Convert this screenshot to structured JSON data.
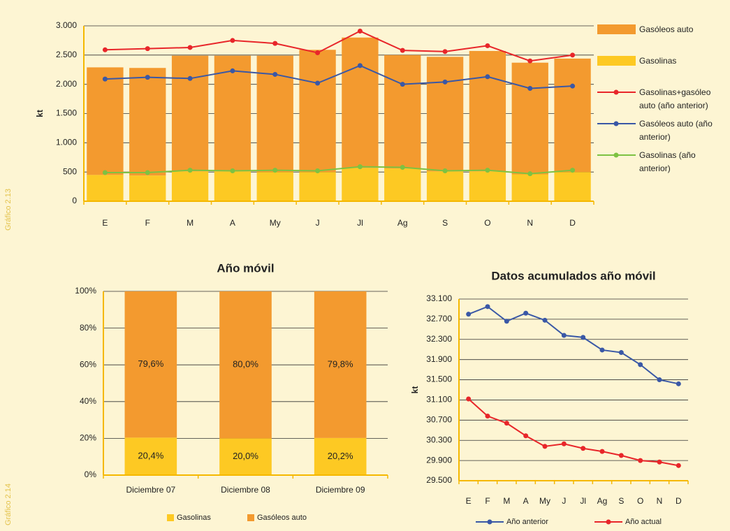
{
  "figure_labels": [
    "Gráfico 2.13",
    "Gráfico 2.14"
  ],
  "chart_data": [
    {
      "type": "bar",
      "ylabel": "kt",
      "categories": [
        "E",
        "F",
        "M",
        "A",
        "My",
        "J",
        "Jl",
        "Ag",
        "S",
        "O",
        "N",
        "D"
      ],
      "series": [
        {
          "name": "Gasóleos auto",
          "color": "#f39a2f",
          "values": [
            1840,
            1840,
            1980,
            1980,
            1990,
            2090,
            2230,
            1940,
            1960,
            2060,
            1910,
            1940
          ]
        },
        {
          "name": "Gasolinas",
          "color": "#fdc923",
          "values": [
            450,
            440,
            510,
            510,
            500,
            500,
            570,
            560,
            510,
            510,
            460,
            500
          ]
        },
        {
          "name": "Gasolinas+gasóleo auto (año anterior)",
          "type": "line",
          "color": "#e8262a",
          "values": [
            2590,
            2610,
            2630,
            2750,
            2700,
            2540,
            2910,
            2580,
            2560,
            2660,
            2400,
            2500
          ]
        },
        {
          "name": "Gasóleos auto (año anterior)",
          "type": "line",
          "color": "#3a58a6",
          "values": [
            2090,
            2120,
            2100,
            2230,
            2170,
            2020,
            2320,
            2000,
            2040,
            2130,
            1930,
            1970
          ]
        },
        {
          "name": "Gasolinas (año anterior)",
          "type": "line",
          "color": "#7dc242",
          "values": [
            490,
            490,
            530,
            520,
            530,
            520,
            590,
            580,
            520,
            530,
            470,
            530
          ]
        }
      ],
      "ylim": [
        0,
        3000
      ],
      "yticks": [
        0,
        500,
        {
          "value": 1000,
          "label": "1.000"
        },
        {
          "value": 1500,
          "label": "1.500"
        },
        {
          "value": 2000,
          "label": "2.000"
        },
        {
          "value": 2500,
          "label": "2.500"
        },
        {
          "value": 3000,
          "label": "3.000"
        }
      ],
      "grid": true,
      "legend": "right"
    },
    {
      "type": "bar",
      "title": "Año móvil",
      "categories": [
        "Diciembre 07",
        "Diciembre 08",
        "Diciembre 09"
      ],
      "series": [
        {
          "name": "Gasolinas",
          "color": "#fdc923",
          "values": [
            20.4,
            20.0,
            20.2
          ],
          "value_labels": [
            "20,4%",
            "20,0%",
            "20,2%"
          ]
        },
        {
          "name": "Gasóleos auto",
          "color": "#f39a2f",
          "values": [
            79.6,
            80.0,
            79.8
          ],
          "value_labels": [
            "79,6%",
            "80,0%",
            "79,8%"
          ]
        }
      ],
      "ylim": [
        0,
        100
      ],
      "yticks": [
        {
          "value": 0,
          "label": "0%"
        },
        {
          "value": 20,
          "label": "20%"
        },
        {
          "value": 40,
          "label": "40%"
        },
        {
          "value": 60,
          "label": "60%"
        },
        {
          "value": 80,
          "label": "80%"
        },
        {
          "value": 100,
          "label": "100%"
        }
      ],
      "grid": true,
      "legend": "bottom"
    },
    {
      "type": "line",
      "title": "Datos acumulados año móvil",
      "ylabel": "kt",
      "categories": [
        "E",
        "F",
        "M",
        "A",
        "My",
        "J",
        "Jl",
        "Ag",
        "S",
        "O",
        "N",
        "D"
      ],
      "series": [
        {
          "name": "Año anterior",
          "color": "#3a58a6",
          "values": [
            32800,
            32950,
            32660,
            32820,
            32680,
            32380,
            32340,
            32090,
            32040,
            31800,
            31500,
            31420
          ]
        },
        {
          "name": "Año actual",
          "color": "#e8262a",
          "values": [
            31120,
            30780,
            30640,
            30390,
            30180,
            30230,
            30140,
            30080,
            30000,
            29900,
            29870,
            29800
          ]
        }
      ],
      "ylim": [
        29500,
        33100
      ],
      "yticks": [
        {
          "value": 29500,
          "label": "29.500"
        },
        {
          "value": 29900,
          "label": "29.900"
        },
        {
          "value": 30300,
          "label": "30.300"
        },
        {
          "value": 30700,
          "label": "30.700"
        },
        {
          "value": 31100,
          "label": "31.100"
        },
        {
          "value": 31500,
          "label": "31.500"
        },
        {
          "value": 31900,
          "label": "31.900"
        },
        {
          "value": 32300,
          "label": "32.300"
        },
        {
          "value": 32700,
          "label": "32.700"
        },
        {
          "value": 33100,
          "label": "33.100"
        }
      ],
      "grid": true,
      "legend": "bottom"
    }
  ]
}
